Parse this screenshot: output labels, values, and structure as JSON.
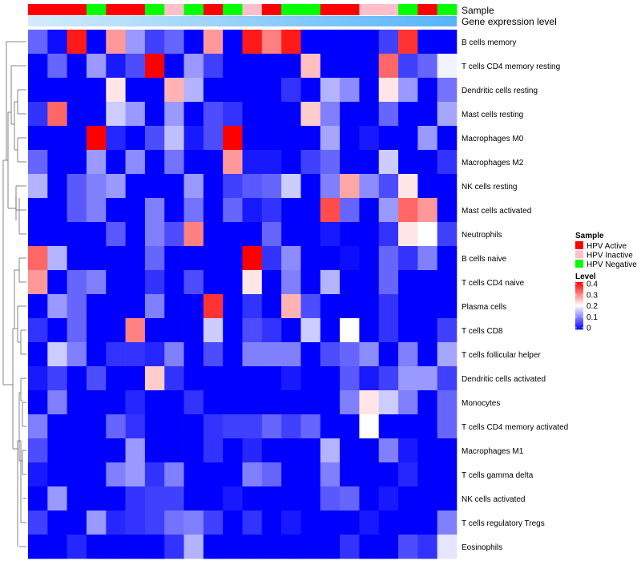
{
  "chart_data": {
    "type": "heatmap",
    "title": "",
    "annotation_track_labels": [
      "Sample",
      "Gene expression level"
    ],
    "sample_groups": [
      "HPV Active",
      "HPV Active",
      "HPV Active",
      "HPV Negative",
      "HPV Active",
      "HPV Active",
      "HPV Negative",
      "HPV Inactive",
      "HPV Negative",
      "HPV Active",
      "HPV Negative",
      "HPV Inactive",
      "HPV Active",
      "HPV Negative",
      "HPV Negative",
      "HPV Active",
      "HPV Active",
      "HPV Inactive",
      "HPV Inactive",
      "HPV Negative",
      "HPV Active",
      "HPV Negative"
    ],
    "rows": [
      "B cells memory",
      "T cells CD4 memory resting",
      "Dendritic cells resting",
      "Mast cells resting",
      "Macrophages M0",
      "Macrophages M2",
      "NK cells resting",
      "Mast cells activated",
      "Neutrophils",
      "B cells naive",
      "T cells CD4 naive",
      "Plasma cells",
      "T cells CD8",
      "T cells follicular helper",
      "Dendritic cells activated",
      "Monocytes",
      "T cells CD4 memory activated",
      "Macrophages M1",
      "T cells gamma delta",
      "NK cells activated",
      "T cells regulatory  Tregs",
      "Eosinophils"
    ],
    "values": [
      [
        0.08,
        0.01,
        0.38,
        0.0,
        0.28,
        0.12,
        0.05,
        0.08,
        0.0,
        0.28,
        0.0,
        0.38,
        0.3,
        0.38,
        0.0,
        0.0,
        0.0,
        0.0,
        0.05,
        0.36,
        0.0,
        0.0
      ],
      [
        0.0,
        0.08,
        0.0,
        0.12,
        0.02,
        0.06,
        0.4,
        0.0,
        0.12,
        0.05,
        0.0,
        0.0,
        0.0,
        0.0,
        0.25,
        0.0,
        0.0,
        0.0,
        0.32,
        0.05,
        0.08,
        0.19
      ],
      [
        0.0,
        0.0,
        0.0,
        0.0,
        0.22,
        0.0,
        0.0,
        0.26,
        0.14,
        0.0,
        0.0,
        0.0,
        0.0,
        0.04,
        0.0,
        0.14,
        0.11,
        0.0,
        0.22,
        0.12,
        0.0,
        0.09
      ],
      [
        0.04,
        0.32,
        0.0,
        0.0,
        0.16,
        0.12,
        0.0,
        0.12,
        0.0,
        0.06,
        0.04,
        0.0,
        0.0,
        0.0,
        0.24,
        0.1,
        0.0,
        0.0,
        0.08,
        0.0,
        0.0,
        0.13
      ],
      [
        0.0,
        0.0,
        0.0,
        0.4,
        0.03,
        0.0,
        0.06,
        0.15,
        0.02,
        0.06,
        0.4,
        0.0,
        0.0,
        0.0,
        0.0,
        0.13,
        0.0,
        0.02,
        0.0,
        0.0,
        0.12,
        0.0
      ],
      [
        0.08,
        0.0,
        0.0,
        0.12,
        0.0,
        0.11,
        0.0,
        0.09,
        0.0,
        0.0,
        0.28,
        0.02,
        0.02,
        0.0,
        0.05,
        0.08,
        0.0,
        0.0,
        0.16,
        0.0,
        0.0,
        0.04
      ],
      [
        0.14,
        0.0,
        0.07,
        0.1,
        0.12,
        0.0,
        0.0,
        0.0,
        0.12,
        0.0,
        0.05,
        0.07,
        0.08,
        0.16,
        0.0,
        0.1,
        0.27,
        0.11,
        0.06,
        0.22,
        0.0,
        0.0
      ],
      [
        0.0,
        0.0,
        0.07,
        0.1,
        0.0,
        0.0,
        0.1,
        0.0,
        0.09,
        0.0,
        0.08,
        0.02,
        0.04,
        0.0,
        0.0,
        0.34,
        0.08,
        0.0,
        0.12,
        0.32,
        0.28,
        0.0
      ],
      [
        0.0,
        0.0,
        0.0,
        0.0,
        0.07,
        0.0,
        0.1,
        0.06,
        0.3,
        0.0,
        0.0,
        0.0,
        0.08,
        0.0,
        0.0,
        0.02,
        0.0,
        0.0,
        0.04,
        0.22,
        0.2,
        0.05
      ],
      [
        0.32,
        0.14,
        0.0,
        0.0,
        0.0,
        0.0,
        0.08,
        0.0,
        0.0,
        0.0,
        0.0,
        0.4,
        0.04,
        0.11,
        0.0,
        0.0,
        0.01,
        0.0,
        0.08,
        0.04,
        0.1,
        0.0
      ],
      [
        0.28,
        0.0,
        0.08,
        0.1,
        0.0,
        0.0,
        0.04,
        0.0,
        0.06,
        0.0,
        0.0,
        0.22,
        0.0,
        0.1,
        0.0,
        0.14,
        0.0,
        0.0,
        0.08,
        0.0,
        0.0,
        0.0
      ],
      [
        0.0,
        0.12,
        0.08,
        0.0,
        0.0,
        0.0,
        0.1,
        0.0,
        0.0,
        0.36,
        0.0,
        0.04,
        0.0,
        0.26,
        0.06,
        0.0,
        0.0,
        0.0,
        0.04,
        0.0,
        0.0,
        0.0
      ],
      [
        0.04,
        0.0,
        0.08,
        0.0,
        0.0,
        0.3,
        0.0,
        0.0,
        0.0,
        0.16,
        0.0,
        0.06,
        0.04,
        0.0,
        0.16,
        0.0,
        0.2,
        0.0,
        0.04,
        0.0,
        0.0,
        0.05
      ],
      [
        0.0,
        0.16,
        0.1,
        0.0,
        0.04,
        0.04,
        0.03,
        0.1,
        0.0,
        0.06,
        0.0,
        0.1,
        0.1,
        0.1,
        0.0,
        0.06,
        0.08,
        0.11,
        0.0,
        0.1,
        0.0,
        0.13
      ],
      [
        0.02,
        0.05,
        0.0,
        0.06,
        0.0,
        0.0,
        0.24,
        0.04,
        0.0,
        0.0,
        0.0,
        0.0,
        0.0,
        0.02,
        0.0,
        0.0,
        0.07,
        0.02,
        0.05,
        0.12,
        0.12,
        0.05
      ],
      [
        0.0,
        0.1,
        0.0,
        0.0,
        0.0,
        0.03,
        0.0,
        0.0,
        0.04,
        0.0,
        0.0,
        0.0,
        0.0,
        0.0,
        0.0,
        0.0,
        0.1,
        0.22,
        0.16,
        0.1,
        0.0,
        0.08
      ],
      [
        0.1,
        0.0,
        0.0,
        0.0,
        0.08,
        0.04,
        0.0,
        0.0,
        0.0,
        0.04,
        0.05,
        0.05,
        0.08,
        0.05,
        0.08,
        0.0,
        0.0,
        0.2,
        0.0,
        0.0,
        0.0,
        0.08
      ],
      [
        0.06,
        0.0,
        0.0,
        0.0,
        0.0,
        0.12,
        0.0,
        0.0,
        0.0,
        0.04,
        0.0,
        0.03,
        0.0,
        0.0,
        0.0,
        0.14,
        0.0,
        0.0,
        0.1,
        0.02,
        0.0,
        0.0
      ],
      [
        0.02,
        0.0,
        0.0,
        0.0,
        0.1,
        0.12,
        0.04,
        0.1,
        0.0,
        0.0,
        0.0,
        0.1,
        0.08,
        0.0,
        0.0,
        0.1,
        0.0,
        0.0,
        0.0,
        0.03,
        0.0,
        0.0
      ],
      [
        0.0,
        0.12,
        0.0,
        0.0,
        0.0,
        0.04,
        0.05,
        0.05,
        0.0,
        0.0,
        0.02,
        0.0,
        0.0,
        0.0,
        0.0,
        0.07,
        0.08,
        0.0,
        0.02,
        0.0,
        0.0,
        0.0
      ],
      [
        0.05,
        0.0,
        0.0,
        0.12,
        0.03,
        0.04,
        0.05,
        0.09,
        0.1,
        0.05,
        0.0,
        0.04,
        0.0,
        0.02,
        0.0,
        0.0,
        0.0,
        0.02,
        0.0,
        0.0,
        0.0,
        0.1
      ],
      [
        0.0,
        0.0,
        0.03,
        0.0,
        0.0,
        0.0,
        0.0,
        0.04,
        0.14,
        0.0,
        0.0,
        0.0,
        0.0,
        0.0,
        0.0,
        0.0,
        0.04,
        0.0,
        0.0,
        0.06,
        0.04,
        0.18
      ]
    ],
    "expression_track": "light blue, increasing left to right",
    "legend_sample": {
      "title": "Sample",
      "entries": [
        {
          "label": "HPV Active",
          "color": "#ff0000"
        },
        {
          "label": "HPV Inactive",
          "color": "#ffc0cb"
        },
        {
          "label": "HPV Negative",
          "color": "#00ff00"
        }
      ]
    },
    "legend_level": {
      "title": "Level",
      "ticks": [
        "0.4",
        "0.3",
        "0.2",
        "0.1",
        "0"
      ],
      "range": [
        0,
        0.4
      ],
      "colors": {
        "low": "#0000ff",
        "mid": "#ffffff",
        "high": "#ff0000"
      }
    }
  }
}
